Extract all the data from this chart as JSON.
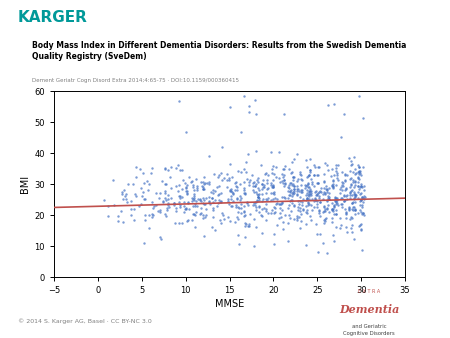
{
  "title_main": "Body Mass Index in Different Dementia Disorders: Results from the Swedish Dementia\nQuality Registry (SveDem)",
  "title_sub": "Dement Geriatr Cogn Disord Extra 2014;4:65-75 · DOI:10.1159/000360415",
  "xlabel": "MMSE",
  "ylabel": "BMI",
  "xlim": [
    -5,
    35
  ],
  "ylim": [
    0,
    60
  ],
  "xticks": [
    -5,
    0,
    5,
    10,
    15,
    20,
    25,
    30,
    35
  ],
  "yticks": [
    0,
    10,
    20,
    30,
    40,
    50,
    60
  ],
  "dot_color": "#4472C4",
  "line_color": "#C0504D",
  "karger_color": "#009999",
  "footer_text": "© 2014 S. Karger AG, Basel · CC BY-NC 3.0",
  "seed": 42,
  "n_points": 900,
  "trend_x0": -5,
  "trend_x1": 35,
  "trend_y0": 22.5,
  "trend_y1": 25.5,
  "extra_text": "E X T R A",
  "dementia_text": "Dementia",
  "sub_dementia_text": "and Geriatric\nCognitive Disorders"
}
